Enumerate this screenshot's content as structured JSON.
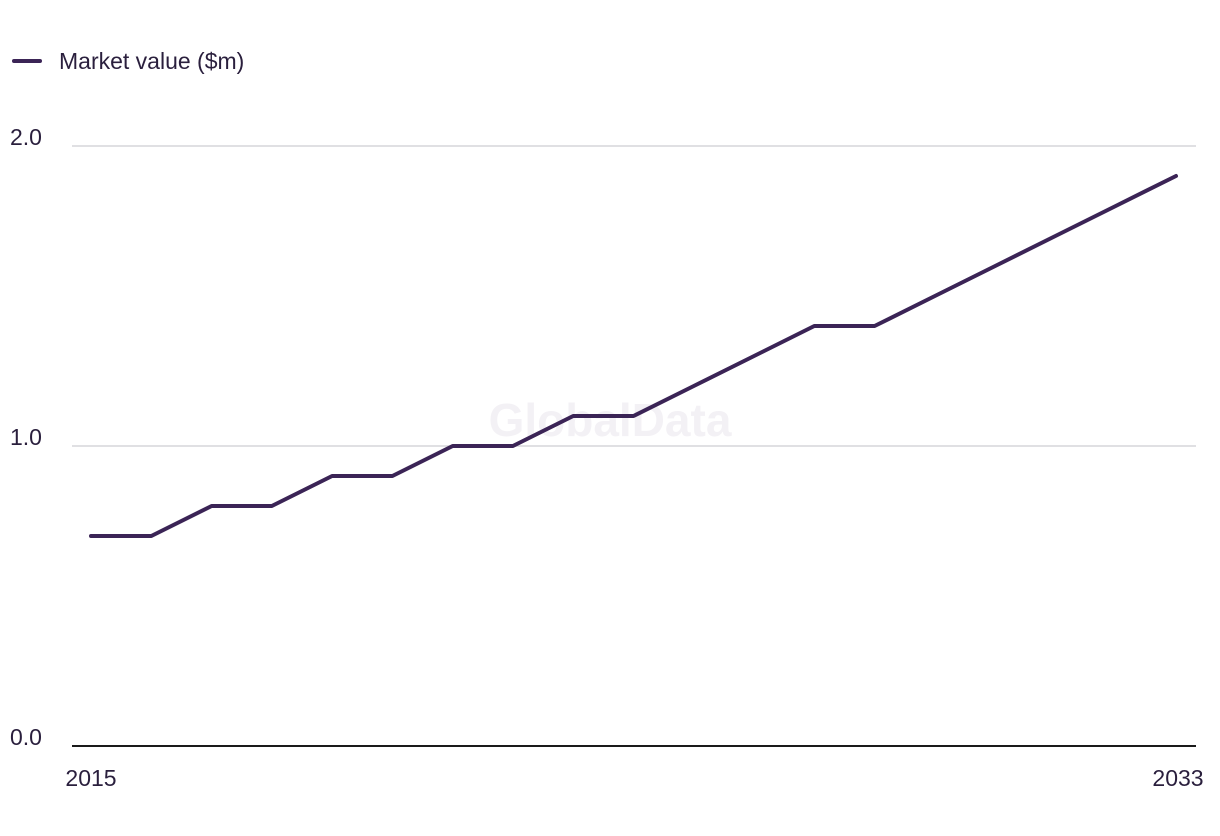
{
  "chart_data": {
    "type": "line",
    "x": [
      2015,
      2016,
      2017,
      2018,
      2019,
      2020,
      2021,
      2022,
      2023,
      2024,
      2025,
      2026,
      2027,
      2028,
      2029,
      2030,
      2031,
      2032,
      2033
    ],
    "series": [
      {
        "name": "Market value ($m)",
        "values": [
          0.7,
          0.7,
          0.8,
          0.8,
          0.9,
          0.9,
          1.0,
          1.0,
          1.1,
          1.1,
          1.2,
          1.3,
          1.4,
          1.4,
          1.5,
          1.6,
          1.7,
          1.8,
          1.9
        ],
        "color": "#3b2456"
      }
    ],
    "ylim": [
      0,
      2
    ],
    "y_ticks": [
      "0.0",
      "1.0",
      "2.0"
    ],
    "x_tick_labels": [
      "2015",
      "2033"
    ],
    "grid": true,
    "legend_position": "top-left",
    "watermark": "GlobalData"
  }
}
